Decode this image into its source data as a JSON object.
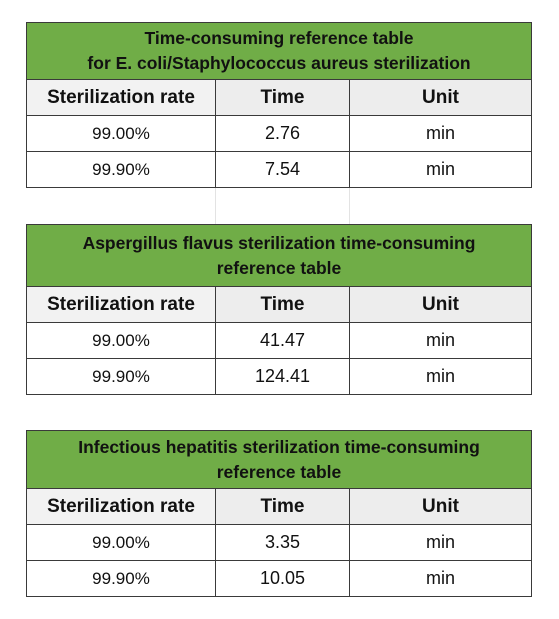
{
  "headers": {
    "rate": "Sterilization rate",
    "time": "Time",
    "unit": "Unit"
  },
  "tables": [
    {
      "title_line1": "Time-consuming reference table",
      "title_line2": "for E. coli/Staphylococcus aureus sterilization",
      "rows": [
        {
          "rate": "99.00%",
          "time": "2.76",
          "unit": "min"
        },
        {
          "rate": "99.90%",
          "time": "7.54",
          "unit": "min"
        }
      ]
    },
    {
      "title_line1": "Aspergillus flavus sterilization time-consuming",
      "title_line2": "reference table",
      "rows": [
        {
          "rate": "99.00%",
          "time": "41.47",
          "unit": "min"
        },
        {
          "rate": "99.90%",
          "time": "124.41",
          "unit": "min"
        }
      ]
    },
    {
      "title_line1": "Infectious hepatitis sterilization time-consuming",
      "title_line2": "reference table",
      "rows": [
        {
          "rate": "99.00%",
          "time": "3.35",
          "unit": "min"
        },
        {
          "rate": "99.90%",
          "time": "10.05",
          "unit": "min"
        }
      ]
    }
  ]
}
